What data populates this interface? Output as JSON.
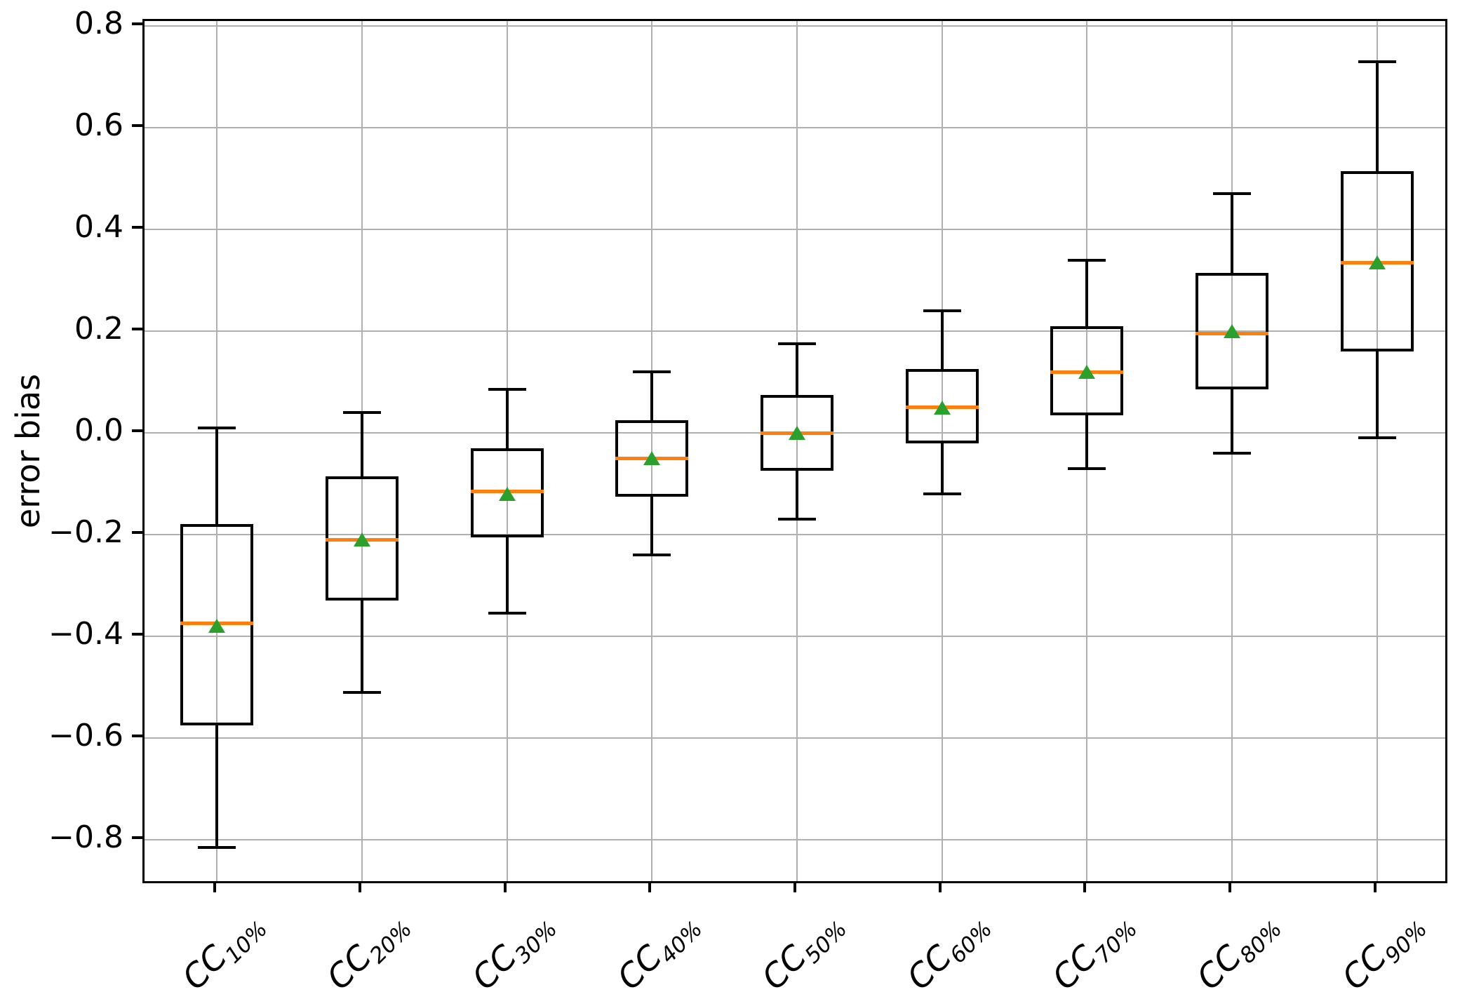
{
  "chart_data": {
    "type": "boxplot",
    "title": "",
    "xlabel": "",
    "ylabel": "error bias",
    "ylim": [
      -0.89,
      0.81
    ],
    "yticks": [
      0.8,
      0.6,
      0.4,
      0.2,
      0.0,
      -0.2,
      -0.4,
      -0.6,
      -0.8
    ],
    "ytick_labels": [
      "0.8",
      "0.6",
      "0.4",
      "0.2",
      "0.0",
      "−0.2",
      "−0.4",
      "−0.6",
      "−0.8"
    ],
    "grid": true,
    "legend": false,
    "categories": [
      {
        "prefix": "CC",
        "subscript": "10%"
      },
      {
        "prefix": "CC",
        "subscript": "20%"
      },
      {
        "prefix": "CC",
        "subscript": "30%"
      },
      {
        "prefix": "CC",
        "subscript": "40%"
      },
      {
        "prefix": "CC",
        "subscript": "50%"
      },
      {
        "prefix": "CC",
        "subscript": "60%"
      },
      {
        "prefix": "CC",
        "subscript": "70%"
      },
      {
        "prefix": "CC",
        "subscript": "80%"
      },
      {
        "prefix": "CC",
        "subscript": "90%"
      }
    ],
    "boxes": [
      {
        "label": "CC10%",
        "whislo": -0.815,
        "q1": -0.575,
        "med": -0.375,
        "mean": -0.38,
        "q3": -0.18,
        "whishi": 0.01
      },
      {
        "label": "CC20%",
        "whislo": -0.51,
        "q1": -0.33,
        "med": -0.21,
        "mean": -0.21,
        "q3": -0.085,
        "whishi": 0.04
      },
      {
        "label": "CC30%",
        "whislo": -0.355,
        "q1": -0.205,
        "med": -0.115,
        "mean": -0.12,
        "q3": -0.03,
        "whishi": 0.085
      },
      {
        "label": "CC40%",
        "whislo": -0.24,
        "q1": -0.125,
        "med": -0.05,
        "mean": -0.05,
        "q3": 0.025,
        "whishi": 0.12
      },
      {
        "label": "CC50%",
        "whislo": -0.17,
        "q1": -0.075,
        "med": 0.0,
        "mean": 0.0,
        "q3": 0.075,
        "whishi": 0.175
      },
      {
        "label": "CC60%",
        "whislo": -0.12,
        "q1": -0.02,
        "med": 0.05,
        "mean": 0.05,
        "q3": 0.125,
        "whishi": 0.24
      },
      {
        "label": "CC70%",
        "whislo": -0.07,
        "q1": 0.035,
        "med": 0.12,
        "mean": 0.12,
        "q3": 0.21,
        "whishi": 0.34
      },
      {
        "label": "CC80%",
        "whislo": -0.04,
        "q1": 0.085,
        "med": 0.195,
        "mean": 0.2,
        "q3": 0.315,
        "whishi": 0.47
      },
      {
        "label": "CC90%",
        "whislo": -0.01,
        "q1": 0.16,
        "med": 0.335,
        "mean": 0.335,
        "q3": 0.515,
        "whishi": 0.73
      }
    ],
    "colors": {
      "median": "#ff7f0e",
      "mean": "#2ca02c",
      "box_edge": "#000000",
      "grid": "#b0b0b0",
      "background": "#ffffff"
    }
  }
}
